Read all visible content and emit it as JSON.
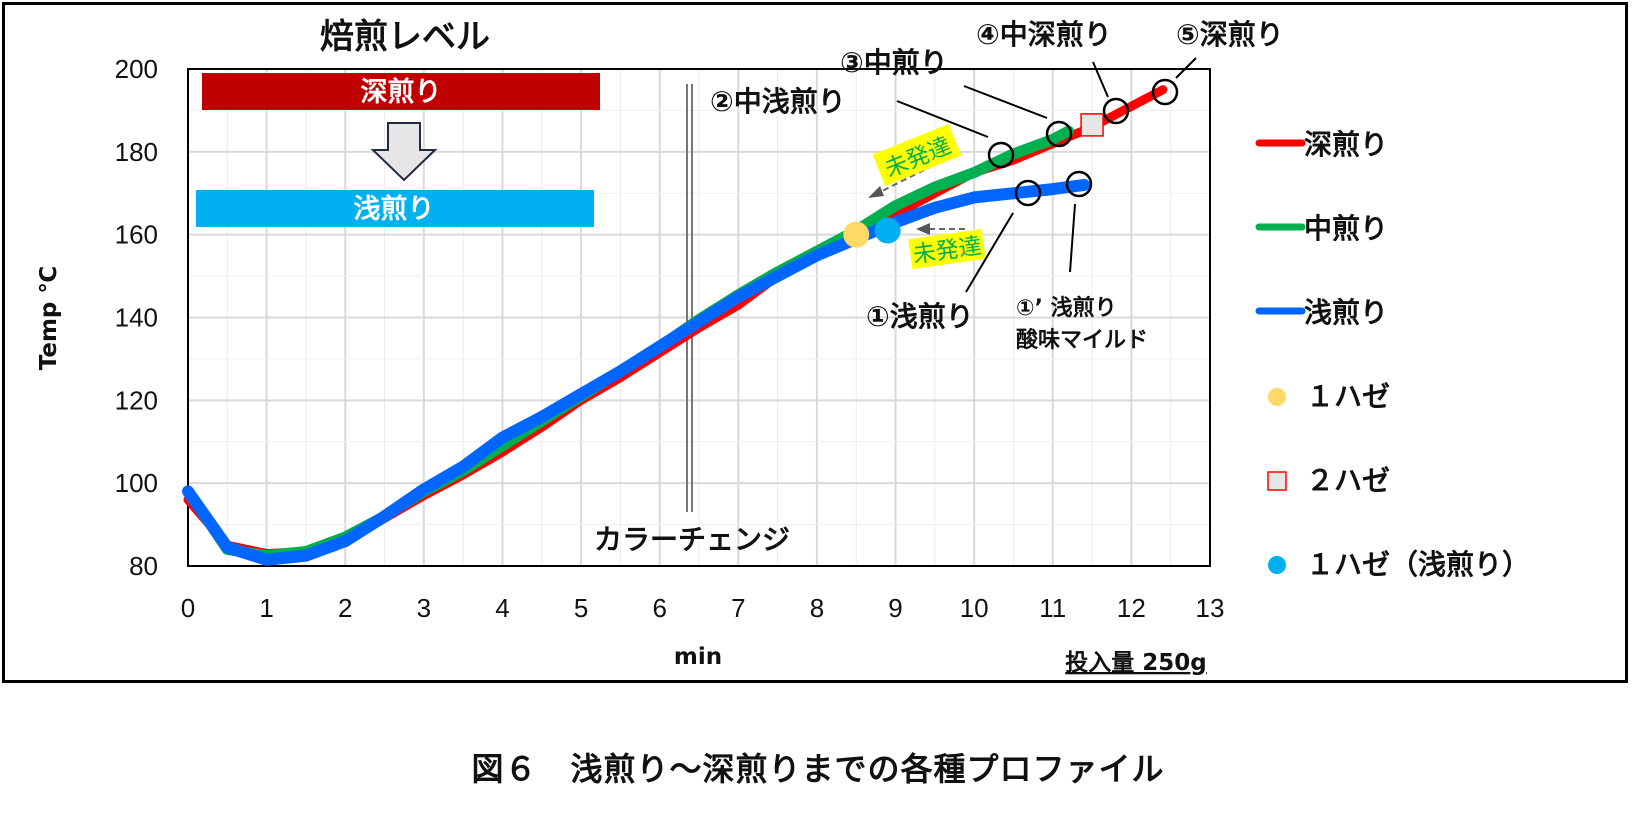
{
  "caption": "図６　浅煎り～深煎りまでの各種プロファイル",
  "colors": {
    "deep": "#FF0000",
    "medium": "#00B050",
    "light": "#0066FF",
    "first_crack": "#FFD966",
    "second_crack_fill": "#E7E6E6",
    "second_crack_border": "#FF0000",
    "first_crack_light": "#00B0F0",
    "banner_deep": "#C00000",
    "banner_light": "#00B0F0",
    "highlight": "#FFFF00",
    "highlight_text": "#00B050"
  },
  "chart_data": {
    "type": "line",
    "title": "焙煎レベル",
    "xlabel": "min",
    "ylabel": "Temp ℃",
    "xlim": [
      0,
      13
    ],
    "ylim": [
      80,
      200
    ],
    "xticks": [
      0,
      1,
      2,
      3,
      4,
      5,
      6,
      7,
      8,
      9,
      10,
      11,
      12,
      13
    ],
    "yticks": [
      80,
      100,
      120,
      140,
      160,
      180,
      200
    ],
    "grid": true,
    "legend_position": "right",
    "series": [
      {
        "name": "深煎り",
        "color": "#FF0000",
        "x": [
          0,
          0.5,
          1,
          1.5,
          2,
          2.5,
          3,
          3.5,
          4,
          4.5,
          5,
          5.5,
          6,
          6.5,
          7,
          7.5,
          8,
          8.5,
          9,
          9.5,
          10,
          10.5,
          11,
          11.5,
          12,
          12.4
        ],
        "y": [
          96,
          85,
          83,
          83.5,
          86.5,
          91.5,
          97,
          102,
          107.5,
          113.5,
          120,
          125.5,
          131.5,
          137.5,
          143,
          150,
          155.5,
          159.5,
          165,
          170,
          175,
          178,
          182,
          186,
          191,
          195
        ]
      },
      {
        "name": "中煎り",
        "color": "#00B050",
        "x": [
          0,
          0.5,
          1,
          1.5,
          2,
          2.5,
          3,
          3.5,
          4,
          4.5,
          5,
          5.5,
          6,
          6.5,
          7,
          7.5,
          8,
          8.5,
          9,
          9.5,
          10,
          10.5,
          11,
          11.2
        ],
        "y": [
          98,
          84,
          82.5,
          83.5,
          87,
          92,
          98,
          103,
          109,
          115,
          121,
          127,
          133,
          139.5,
          145.5,
          151,
          156,
          161,
          167,
          171.5,
          175,
          179.5,
          183,
          185
        ]
      },
      {
        "name": "浅煎り",
        "color": "#0066FF",
        "x": [
          0,
          0.5,
          1,
          1.5,
          2,
          2.5,
          3,
          3.5,
          4,
          4.5,
          5,
          5.5,
          6,
          6.5,
          7,
          7.5,
          8,
          8.5,
          9,
          9.5,
          10,
          10.5,
          11,
          11.4
        ],
        "y": [
          98,
          84.5,
          81.5,
          82.5,
          86,
          92,
          98.5,
          104,
          111,
          116,
          121.5,
          127,
          133,
          139,
          145,
          150,
          155,
          159,
          163,
          166.5,
          169,
          170,
          171,
          172
        ]
      }
    ],
    "markers": [
      {
        "name": "１ハゼ",
        "shape": "circle",
        "color": "#FFD966",
        "x": 8.5,
        "y": 160
      },
      {
        "name": "２ハゼ",
        "shape": "square",
        "color": "#E7E6E6",
        "x": 11.5,
        "y": 186.5
      },
      {
        "name": "１ハゼ（浅煎り）",
        "shape": "circle",
        "color": "#00B0F0",
        "x": 8.9,
        "y": 161
      }
    ],
    "annotations": [
      {
        "text": "①浅煎り",
        "x": 10.7,
        "y": 170
      },
      {
        "text": "①’ 浅煎り",
        "sub": "酸味マイルド",
        "x": 11.35,
        "y": 172
      },
      {
        "text": "②中浅煎り",
        "x": 10.35,
        "y": 179.5
      },
      {
        "text": "③中煎り",
        "x": 11.1,
        "y": 184.5
      },
      {
        "text": "④中深煎り",
        "x": 11.8,
        "y": 190
      },
      {
        "text": "⑤深煎り",
        "x": 12.4,
        "y": 195
      },
      {
        "text": "未発達",
        "x": 9.3,
        "y": 181
      },
      {
        "text": "未発達",
        "x": 9.5,
        "y": 159
      },
      {
        "text": "カラーチェンジ",
        "x": 6.4,
        "y": null
      }
    ],
    "banners": [
      {
        "text": "深煎り"
      },
      {
        "text": "浅煎り"
      }
    ],
    "note": "投入量 250g"
  },
  "legend": [
    {
      "label": "深煎り",
      "type": "line",
      "color": "#FF0000"
    },
    {
      "label": "中煎り",
      "type": "line",
      "color": "#00B050"
    },
    {
      "label": "浅煎り",
      "type": "line",
      "color": "#0066FF"
    },
    {
      "label": "１ハゼ",
      "type": "dot",
      "color": "#FFD966"
    },
    {
      "label": "２ハゼ",
      "type": "square",
      "color": "#E7E6E6"
    },
    {
      "label": "１ハゼ（浅煎り）",
      "type": "dot",
      "color": "#00B0F0"
    }
  ]
}
